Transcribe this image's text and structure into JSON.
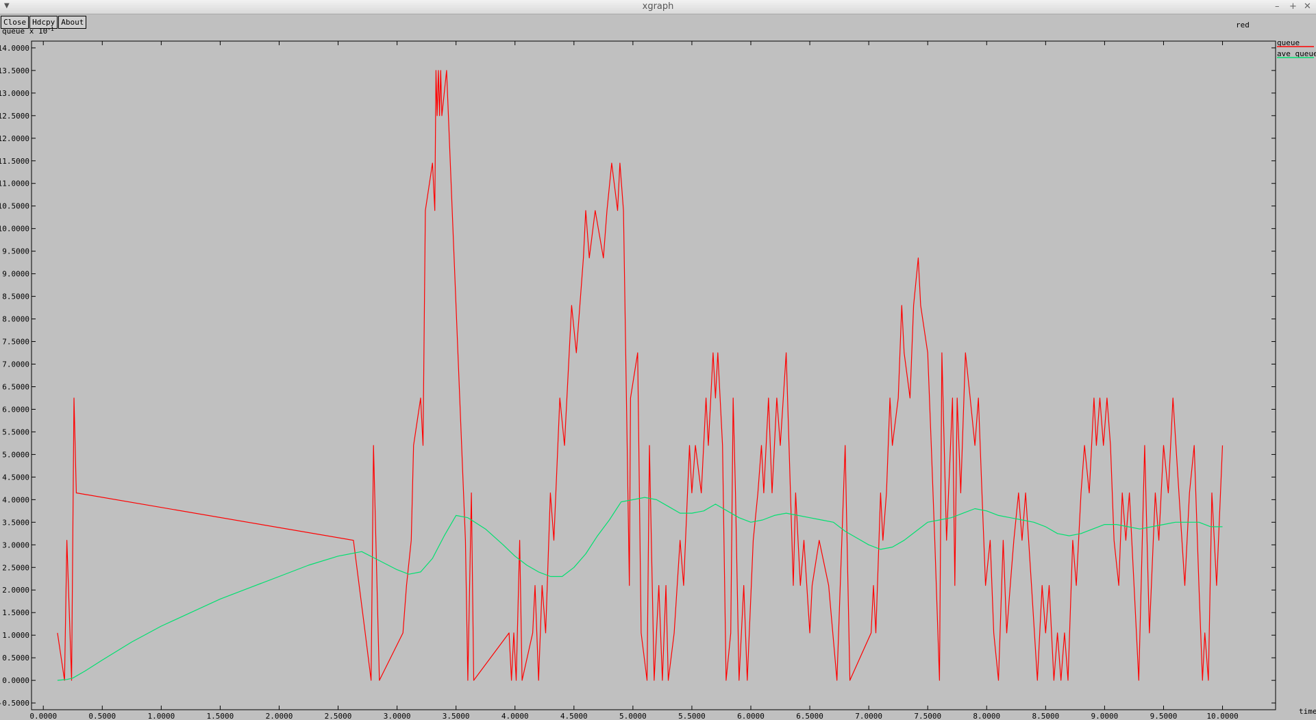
{
  "window": {
    "title": "xgraph"
  },
  "toolbar": {
    "close_label": "Close",
    "hdcpy_label": "Hdcpy",
    "about_label": "About"
  },
  "plot": {
    "title": "red",
    "ylabel": "queue x 10",
    "ylabel_exponent": "-1",
    "xlabel": "time"
  },
  "colors": {
    "background": "#c0c0c0",
    "queue": "#ff0000",
    "ave_queue": "#00e070",
    "axis": "#000000"
  },
  "chart_data": {
    "type": "line",
    "title": "red",
    "xlabel": "time",
    "ylabel": "queue x 10^-1",
    "xlim": [
      -0.1,
      10.45
    ],
    "ylim": [
      -0.65,
      14.15
    ],
    "xticks": [
      0.0,
      0.5,
      1.0,
      1.5,
      2.0,
      2.5,
      3.0,
      3.5,
      4.0,
      4.5,
      5.0,
      5.5,
      6.0,
      6.5,
      7.0,
      7.5,
      8.0,
      8.5,
      9.0,
      9.5,
      10.0
    ],
    "xtick_labels": [
      "0.0000",
      "0.5000",
      "1.0000",
      "1.5000",
      "2.0000",
      "2.5000",
      "3.0000",
      "3.5000",
      "4.0000",
      "4.5000",
      "5.0000",
      "5.5000",
      "6.0000",
      "6.5000",
      "7.0000",
      "7.5000",
      "8.0000",
      "8.5000",
      "9.0000",
      "9.5000",
      "10.0000"
    ],
    "yticks": [
      -0.5,
      0.0,
      0.5,
      1.0,
      1.5,
      2.0,
      2.5,
      3.0,
      3.5,
      4.0,
      4.5,
      5.0,
      5.5,
      6.0,
      6.5,
      7.0,
      7.5,
      8.0,
      8.5,
      9.0,
      9.5,
      10.0,
      10.5,
      11.0,
      11.5,
      12.0,
      12.5,
      13.0,
      13.5,
      14.0
    ],
    "ytick_labels": [
      "-0.5000",
      "0.0000",
      "0.5000",
      "1.0000",
      "1.5000",
      "2.0000",
      "2.5000",
      "3.0000",
      "3.5000",
      "4.0000",
      "4.5000",
      "5.0000",
      "5.5000",
      "6.0000",
      "6.5000",
      "7.0000",
      "7.5000",
      "8.0000",
      "8.5000",
      "9.0000",
      "9.5000",
      "10.0000",
      "10.5000",
      "11.0000",
      "11.5000",
      "12.0000",
      "12.5000",
      "13.0000",
      "13.5000",
      "14.0000"
    ],
    "legend_placement": "right",
    "grid": false,
    "series": [
      {
        "name": "queue",
        "color": "#ff0000",
        "points": [
          [
            0.12,
            1.05
          ],
          [
            0.18,
            0.0
          ],
          [
            0.2,
            3.1
          ],
          [
            0.24,
            0.0
          ],
          [
            0.26,
            6.25
          ],
          [
            0.28,
            4.15
          ],
          [
            2.63,
            3.1
          ],
          [
            2.73,
            1.05
          ],
          [
            2.78,
            0.0
          ],
          [
            2.8,
            5.2
          ],
          [
            2.85,
            0.0
          ],
          [
            3.05,
            1.05
          ],
          [
            3.08,
            2.1
          ],
          [
            3.12,
            3.1
          ],
          [
            3.14,
            5.2
          ],
          [
            3.2,
            6.25
          ],
          [
            3.22,
            5.2
          ],
          [
            3.24,
            10.4
          ],
          [
            3.3,
            11.45
          ],
          [
            3.32,
            10.4
          ],
          [
            3.33,
            13.5
          ],
          [
            3.34,
            12.5
          ],
          [
            3.35,
            13.5
          ],
          [
            3.36,
            12.5
          ],
          [
            3.37,
            13.5
          ],
          [
            3.38,
            12.5
          ],
          [
            3.42,
            13.5
          ],
          [
            3.58,
            3.1
          ],
          [
            3.6,
            0.0
          ],
          [
            3.63,
            4.15
          ],
          [
            3.65,
            0.0
          ],
          [
            3.95,
            1.05
          ],
          [
            3.97,
            0.0
          ],
          [
            3.99,
            1.05
          ],
          [
            4.01,
            0.0
          ],
          [
            4.04,
            3.1
          ],
          [
            4.06,
            0.0
          ],
          [
            4.15,
            1.05
          ],
          [
            4.17,
            2.1
          ],
          [
            4.2,
            0.0
          ],
          [
            4.23,
            2.1
          ],
          [
            4.26,
            1.05
          ],
          [
            4.3,
            4.15
          ],
          [
            4.33,
            3.1
          ],
          [
            4.38,
            6.25
          ],
          [
            4.42,
            5.2
          ],
          [
            4.48,
            8.3
          ],
          [
            4.52,
            7.25
          ],
          [
            4.58,
            9.35
          ],
          [
            4.6,
            10.4
          ],
          [
            4.63,
            9.35
          ],
          [
            4.68,
            10.4
          ],
          [
            4.75,
            9.35
          ],
          [
            4.78,
            10.4
          ],
          [
            4.82,
            11.45
          ],
          [
            4.87,
            10.4
          ],
          [
            4.89,
            11.45
          ],
          [
            4.92,
            10.4
          ],
          [
            4.97,
            2.1
          ],
          [
            4.98,
            6.25
          ],
          [
            5.04,
            7.25
          ],
          [
            5.07,
            1.05
          ],
          [
            5.12,
            0.0
          ],
          [
            5.14,
            5.2
          ],
          [
            5.18,
            0.0
          ],
          [
            5.22,
            2.1
          ],
          [
            5.25,
            0.0
          ],
          [
            5.28,
            2.1
          ],
          [
            5.3,
            0.0
          ],
          [
            5.35,
            1.05
          ],
          [
            5.4,
            3.1
          ],
          [
            5.43,
            2.1
          ],
          [
            5.48,
            5.2
          ],
          [
            5.5,
            4.15
          ],
          [
            5.53,
            5.2
          ],
          [
            5.58,
            4.15
          ],
          [
            5.62,
            6.25
          ],
          [
            5.64,
            5.2
          ],
          [
            5.68,
            7.25
          ],
          [
            5.7,
            6.25
          ],
          [
            5.72,
            7.25
          ],
          [
            5.76,
            5.2
          ],
          [
            5.79,
            0.0
          ],
          [
            5.83,
            1.05
          ],
          [
            5.85,
            6.25
          ],
          [
            5.87,
            4.15
          ],
          [
            5.9,
            0.0
          ],
          [
            5.94,
            2.1
          ],
          [
            5.97,
            0.0
          ],
          [
            6.02,
            3.1
          ],
          [
            6.06,
            4.15
          ],
          [
            6.09,
            5.2
          ],
          [
            6.11,
            4.15
          ],
          [
            6.15,
            6.25
          ],
          [
            6.18,
            4.15
          ],
          [
            6.22,
            6.25
          ],
          [
            6.25,
            5.2
          ],
          [
            6.3,
            7.25
          ],
          [
            6.36,
            2.1
          ],
          [
            6.38,
            4.15
          ],
          [
            6.42,
            2.1
          ],
          [
            6.45,
            3.1
          ],
          [
            6.5,
            1.05
          ],
          [
            6.52,
            2.1
          ],
          [
            6.58,
            3.1
          ],
          [
            6.66,
            2.1
          ],
          [
            6.73,
            0.0
          ],
          [
            6.8,
            5.2
          ],
          [
            6.84,
            0.0
          ],
          [
            7.02,
            1.05
          ],
          [
            7.04,
            2.1
          ],
          [
            7.06,
            1.05
          ],
          [
            7.1,
            4.15
          ],
          [
            7.12,
            3.1
          ],
          [
            7.15,
            4.15
          ],
          [
            7.18,
            6.25
          ],
          [
            7.2,
            5.2
          ],
          [
            7.25,
            6.25
          ],
          [
            7.28,
            8.3
          ],
          [
            7.3,
            7.25
          ],
          [
            7.35,
            6.25
          ],
          [
            7.38,
            8.3
          ],
          [
            7.42,
            9.35
          ],
          [
            7.44,
            8.3
          ],
          [
            7.5,
            7.25
          ],
          [
            7.53,
            5.2
          ],
          [
            7.56,
            3.1
          ],
          [
            7.6,
            0.0
          ],
          [
            7.62,
            7.25
          ],
          [
            7.66,
            3.1
          ],
          [
            7.71,
            6.25
          ],
          [
            7.73,
            2.1
          ],
          [
            7.75,
            6.25
          ],
          [
            7.78,
            4.15
          ],
          [
            7.82,
            7.25
          ],
          [
            7.86,
            6.25
          ],
          [
            7.9,
            5.2
          ],
          [
            7.93,
            6.25
          ],
          [
            7.96,
            4.15
          ],
          [
            7.99,
            2.1
          ],
          [
            8.03,
            3.1
          ],
          [
            8.06,
            1.05
          ],
          [
            8.1,
            0.0
          ],
          [
            8.14,
            3.1
          ],
          [
            8.17,
            1.05
          ],
          [
            8.2,
            2.1
          ],
          [
            8.23,
            3.1
          ],
          [
            8.27,
            4.15
          ],
          [
            8.3,
            3.1
          ],
          [
            8.33,
            4.15
          ],
          [
            8.38,
            2.1
          ],
          [
            8.43,
            0.0
          ],
          [
            8.47,
            2.1
          ],
          [
            8.5,
            1.05
          ],
          [
            8.53,
            2.1
          ],
          [
            8.57,
            0.0
          ],
          [
            8.6,
            1.05
          ],
          [
            8.63,
            0.0
          ],
          [
            8.66,
            1.05
          ],
          [
            8.69,
            0.0
          ],
          [
            8.73,
            3.1
          ],
          [
            8.76,
            2.1
          ],
          [
            8.8,
            4.15
          ],
          [
            8.83,
            5.2
          ],
          [
            8.87,
            4.15
          ],
          [
            8.91,
            6.25
          ],
          [
            8.93,
            5.2
          ],
          [
            8.96,
            6.25
          ],
          [
            8.99,
            5.2
          ],
          [
            9.02,
            6.25
          ],
          [
            9.05,
            5.2
          ],
          [
            9.08,
            3.1
          ],
          [
            9.12,
            2.1
          ],
          [
            9.15,
            4.15
          ],
          [
            9.18,
            3.1
          ],
          [
            9.21,
            4.15
          ],
          [
            9.25,
            2.1
          ],
          [
            9.29,
            0.0
          ],
          [
            9.34,
            5.2
          ],
          [
            9.38,
            1.05
          ],
          [
            9.43,
            4.15
          ],
          [
            9.46,
            3.1
          ],
          [
            9.5,
            5.2
          ],
          [
            9.54,
            4.15
          ],
          [
            9.58,
            6.25
          ],
          [
            9.63,
            4.15
          ],
          [
            9.68,
            2.1
          ],
          [
            9.72,
            4.15
          ],
          [
            9.76,
            5.2
          ],
          [
            9.8,
            2.1
          ],
          [
            9.83,
            0.0
          ],
          [
            9.85,
            1.05
          ],
          [
            9.88,
            0.0
          ],
          [
            9.91,
            4.15
          ],
          [
            9.95,
            2.1
          ],
          [
            10.0,
            5.2
          ]
        ]
      },
      {
        "name": "ave_queue",
        "color": "#00e070",
        "points": [
          [
            0.12,
            0.0
          ],
          [
            0.2,
            0.02
          ],
          [
            0.25,
            0.05
          ],
          [
            0.35,
            0.2
          ],
          [
            0.5,
            0.45
          ],
          [
            0.75,
            0.85
          ],
          [
            1.0,
            1.2
          ],
          [
            1.25,
            1.5
          ],
          [
            1.5,
            1.8
          ],
          [
            1.75,
            2.05
          ],
          [
            2.0,
            2.3
          ],
          [
            2.25,
            2.55
          ],
          [
            2.5,
            2.75
          ],
          [
            2.7,
            2.85
          ],
          [
            2.85,
            2.65
          ],
          [
            3.0,
            2.45
          ],
          [
            3.1,
            2.35
          ],
          [
            3.2,
            2.4
          ],
          [
            3.3,
            2.7
          ],
          [
            3.4,
            3.2
          ],
          [
            3.5,
            3.65
          ],
          [
            3.6,
            3.6
          ],
          [
            3.75,
            3.35
          ],
          [
            3.9,
            3.0
          ],
          [
            4.0,
            2.75
          ],
          [
            4.1,
            2.55
          ],
          [
            4.2,
            2.4
          ],
          [
            4.3,
            2.3
          ],
          [
            4.4,
            2.3
          ],
          [
            4.5,
            2.5
          ],
          [
            4.6,
            2.8
          ],
          [
            4.7,
            3.2
          ],
          [
            4.8,
            3.55
          ],
          [
            4.9,
            3.95
          ],
          [
            5.0,
            4.0
          ],
          [
            5.1,
            4.05
          ],
          [
            5.2,
            4.0
          ],
          [
            5.3,
            3.85
          ],
          [
            5.4,
            3.7
          ],
          [
            5.5,
            3.7
          ],
          [
            5.6,
            3.75
          ],
          [
            5.7,
            3.9
          ],
          [
            5.8,
            3.75
          ],
          [
            5.9,
            3.6
          ],
          [
            6.0,
            3.5
          ],
          [
            6.1,
            3.55
          ],
          [
            6.2,
            3.65
          ],
          [
            6.3,
            3.7
          ],
          [
            6.4,
            3.65
          ],
          [
            6.5,
            3.6
          ],
          [
            6.6,
            3.55
          ],
          [
            6.7,
            3.5
          ],
          [
            6.8,
            3.3
          ],
          [
            6.9,
            3.15
          ],
          [
            7.0,
            3.0
          ],
          [
            7.1,
            2.9
          ],
          [
            7.2,
            2.95
          ],
          [
            7.3,
            3.1
          ],
          [
            7.4,
            3.3
          ],
          [
            7.5,
            3.5
          ],
          [
            7.6,
            3.55
          ],
          [
            7.7,
            3.6
          ],
          [
            7.8,
            3.7
          ],
          [
            7.9,
            3.8
          ],
          [
            8.0,
            3.75
          ],
          [
            8.1,
            3.65
          ],
          [
            8.2,
            3.6
          ],
          [
            8.3,
            3.55
          ],
          [
            8.4,
            3.5
          ],
          [
            8.5,
            3.4
          ],
          [
            8.6,
            3.25
          ],
          [
            8.7,
            3.2
          ],
          [
            8.8,
            3.25
          ],
          [
            8.9,
            3.35
          ],
          [
            9.0,
            3.45
          ],
          [
            9.1,
            3.45
          ],
          [
            9.2,
            3.4
          ],
          [
            9.3,
            3.35
          ],
          [
            9.4,
            3.4
          ],
          [
            9.5,
            3.45
          ],
          [
            9.6,
            3.5
          ],
          [
            9.7,
            3.5
          ],
          [
            9.8,
            3.5
          ],
          [
            9.9,
            3.4
          ],
          [
            10.0,
            3.4
          ]
        ]
      }
    ]
  }
}
